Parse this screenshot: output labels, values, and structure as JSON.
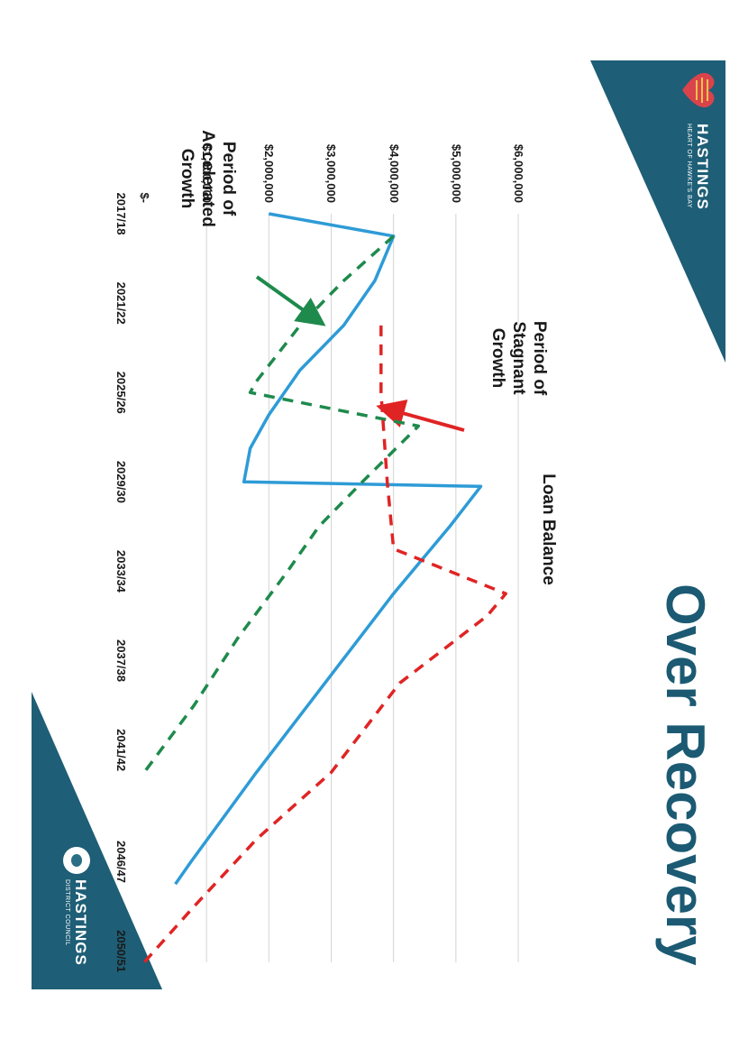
{
  "slide": {
    "title": "Over Recovery",
    "logo_top": {
      "name": "HASTINGS",
      "tagline": "HEART OF HAWKE'S BAY"
    },
    "logo_bottom": {
      "name": "HASTINGS",
      "tagline": "DISTRICT COUNCIL"
    },
    "accent_color": "#1b5a72"
  },
  "chart_data": {
    "type": "line",
    "title": "Over Recovery",
    "xlabel": "",
    "ylabel": "",
    "ylim": [
      0,
      6000000
    ],
    "x_ticks": [
      "2017/18",
      "2021/22",
      "2025/26",
      "2029/30",
      "2033/34",
      "2037/38",
      "2041/42",
      "2046/47",
      "2050/51"
    ],
    "y_ticks": [
      "$-",
      "$1,000,000",
      "$2,000,000",
      "$3,000,000",
      "$4,000,000",
      "$5,000,000",
      "$6,000,000"
    ],
    "y_tick_values": [
      0,
      1000000,
      2000000,
      3000000,
      4000000,
      5000000,
      6000000
    ],
    "grid": true,
    "series": [
      {
        "name": "",
        "color": "#2e9bd6",
        "style": "solid",
        "points": [
          [
            2018,
            2000000
          ],
          [
            2019,
            4000000
          ],
          [
            2021,
            3700000
          ],
          [
            2023,
            3200000
          ],
          [
            2025,
            2500000
          ],
          [
            2027,
            2000000
          ],
          [
            2028.5,
            1700000
          ],
          [
            2030,
            1600000
          ],
          [
            2030.2,
            5400000
          ],
          [
            2032,
            4900000
          ],
          [
            2035,
            4000000
          ],
          [
            2039,
            2900000
          ],
          [
            2043,
            1800000
          ],
          [
            2047,
            750000
          ],
          [
            2048,
            500000
          ]
        ]
      },
      {
        "name": "",
        "color": "#1e8a4c",
        "style": "dashed",
        "points": [
          [
            2019,
            4000000
          ],
          [
            2021,
            3200000
          ],
          [
            2023,
            2500000
          ],
          [
            2025.5,
            1800000
          ],
          [
            2026,
            1700000
          ],
          [
            2027.5,
            4400000
          ],
          [
            2030,
            3500000
          ],
          [
            2032,
            2800000
          ],
          [
            2034,
            2300000
          ],
          [
            2037,
            1500000
          ],
          [
            2040,
            800000
          ],
          [
            2043,
            0
          ]
        ]
      },
      {
        "name": "",
        "color": "#e02424",
        "style": "dashed",
        "points": [
          [
            2023,
            3800000
          ],
          [
            2026,
            3800000
          ],
          [
            2030,
            3900000
          ],
          [
            2033,
            4000000
          ],
          [
            2035,
            5800000
          ],
          [
            2036,
            5500000
          ],
          [
            2039,
            4100000
          ],
          [
            2043,
            3000000
          ],
          [
            2046,
            1800000
          ],
          [
            2049,
            800000
          ],
          [
            2051.5,
            0
          ]
        ]
      }
    ],
    "annotations": [
      {
        "text": "Period of Accelerated Growth",
        "arrow_color": "#1e8a4c"
      },
      {
        "text": "Period of Stagnant Growth",
        "arrow_color": "#e02424"
      },
      {
        "text": "Loan Balance"
      }
    ]
  }
}
